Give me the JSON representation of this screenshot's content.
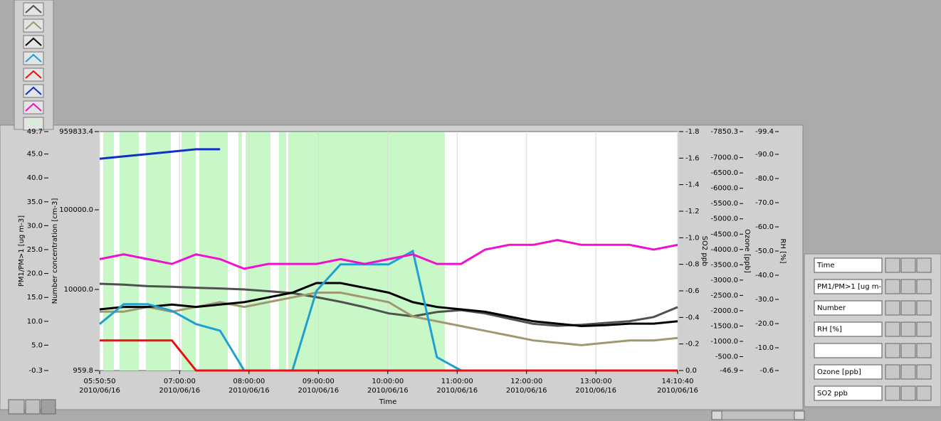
{
  "chart_data": {
    "type": "line",
    "x_label": "Time",
    "x": [
      21050,
      22300,
      23550,
      24800,
      26050,
      27300,
      28550,
      29800,
      31050,
      32300,
      33550,
      34800,
      36050,
      37300,
      38550,
      39800,
      41050,
      42300,
      43550,
      44800,
      46050,
      47300,
      48550,
      49800,
      51040
    ],
    "xlim": [
      21050,
      51040
    ],
    "xticks": [
      {
        "value": 21050,
        "label": "05:50:50"
      },
      {
        "value": 25200,
        "label": "07:00:00"
      },
      {
        "value": 28800,
        "label": "08:00:00"
      },
      {
        "value": 32400,
        "label": "09:00:00"
      },
      {
        "value": 36000,
        "label": "10:00:00"
      },
      {
        "value": 39600,
        "label": "11:00:00"
      },
      {
        "value": 43200,
        "label": "12:00:00"
      },
      {
        "value": 46800,
        "label": "13:00:00"
      },
      {
        "value": 51040,
        "label": "14:10:40"
      }
    ],
    "xtick_date": "2010/06/16",
    "y_axes": [
      {
        "label": "PM1/PM>1 [ug m-3]",
        "lim": [
          -0.3,
          49.7
        ],
        "log": false,
        "ticks": [
          -0.3,
          {
            "value": 5,
            "label": "5.0"
          },
          {
            "value": 10,
            "label": "10.0"
          },
          {
            "value": 15,
            "label": "15.0"
          },
          {
            "value": 20,
            "label": "20.0"
          },
          {
            "value": 25,
            "label": "25.0"
          },
          {
            "value": 30,
            "label": "30.0"
          },
          {
            "value": 35,
            "label": "35.0"
          },
          {
            "value": 40,
            "label": "40.0"
          },
          {
            "value": 45,
            "label": "45.0"
          },
          49.7
        ]
      },
      {
        "label": "Number concentration [cm-3]",
        "lim": [
          959.8,
          959833.4
        ],
        "log": true,
        "ticks": [
          959.8,
          {
            "value": 10000,
            "label": "10000.0"
          },
          {
            "value": 100000,
            "label": "100000.0"
          },
          959833.4
        ]
      },
      {
        "label": "SO2 ppb",
        "lim": [
          0,
          -1.8
        ],
        "log": false,
        "ticks": [
          {
            "value": 0,
            "label": "0.0"
          },
          -0.2,
          -0.4,
          -0.6,
          -0.8,
          {
            "value": -1,
            "label": "-1.0"
          },
          -1.2,
          -1.4,
          -1.6,
          -1.8
        ]
      },
      {
        "label": "Ozone [ppb]",
        "lim": [
          -46.9,
          -7850.3
        ],
        "log": false,
        "ticks": [
          -46.9,
          {
            "value": -500,
            "label": "-500.0"
          },
          {
            "value": -1000,
            "label": "-1000.0"
          },
          {
            "value": -1500,
            "label": "-1500.0"
          },
          {
            "value": -2000,
            "label": "-2000.0"
          },
          {
            "value": -2500,
            "label": "-2500.0"
          },
          {
            "value": -3000,
            "label": "-3000.0"
          },
          {
            "value": -3500,
            "label": "-3500.0"
          },
          {
            "value": -4000,
            "label": "-4000.0"
          },
          {
            "value": -4500,
            "label": "-4500.0"
          },
          {
            "value": -5000,
            "label": "-5000.0"
          },
          {
            "value": -5500,
            "label": "-5500.0"
          },
          {
            "value": -6000,
            "label": "-6000.0"
          },
          {
            "value": -6500,
            "label": "-6500.0"
          },
          {
            "value": -7000,
            "label": "-7000.0"
          },
          -7850.3
        ]
      },
      {
        "label": "RH [%]",
        "lim": [
          -0.6,
          -99.4
        ],
        "log": false,
        "ticks": [
          -0.6,
          {
            "value": -10,
            "label": "-10.0"
          },
          {
            "value": -20,
            "label": "-20.0"
          },
          {
            "value": -30,
            "label": "-30.0"
          },
          {
            "value": -40,
            "label": "-40.0"
          },
          {
            "value": -50,
            "label": "-50.0"
          },
          {
            "value": -60,
            "label": "-60.0"
          },
          {
            "value": -70,
            "label": "-70.0"
          },
          {
            "value": -80,
            "label": "-80.0"
          },
          {
            "value": -90,
            "label": "-90.0"
          },
          -99.4
        ]
      }
    ],
    "shade_color": "#c8f8c8",
    "shaded_spans": [
      [
        21235,
        21789
      ],
      [
        22084,
        23081
      ],
      [
        23450,
        24743
      ],
      [
        25297,
        26036
      ],
      [
        26221,
        27698
      ],
      [
        28252,
        28437
      ],
      [
        28622,
        29914
      ],
      [
        30357,
        30726
      ],
      [
        30837,
        38961
      ]
    ],
    "series": [
      {
        "color": "#505050",
        "axis": 1,
        "values": [
          11800,
          11500,
          11000,
          10800,
          10500,
          10300,
          10000,
          9500,
          9000,
          8000,
          7000,
          6000,
          5000,
          4600,
          5200,
          5500,
          5000,
          4300,
          3700,
          3500,
          3600,
          3800,
          4000,
          4500,
          6000
        ]
      },
      {
        "color": "#a09870",
        "axis": 0,
        "values": [
          12,
          12,
          13,
          12,
          13,
          14,
          13,
          14,
          15,
          16,
          16,
          15,
          14,
          11,
          10,
          9,
          8,
          7,
          6,
          5.5,
          5,
          5.5,
          6,
          6,
          6.5
        ]
      },
      {
        "color": "#000000",
        "axis": 0,
        "values": [
          12.5,
          13,
          13,
          13.5,
          13,
          13.5,
          14,
          15,
          16,
          18,
          18,
          17,
          16,
          14,
          13,
          12.5,
          12,
          11,
          10,
          9.5,
          9,
          9.2,
          9.5,
          9.5,
          10
        ]
      },
      {
        "color": "#20a0d0",
        "axis": 2,
        "values": [
          -0.35,
          -0.5,
          -0.5,
          -0.45,
          -0.35,
          -0.3,
          0,
          0,
          0,
          -0.6,
          -0.8,
          -0.8,
          -0.8,
          -0.9,
          -0.1,
          0,
          0,
          0,
          0,
          0,
          0,
          0,
          0,
          0,
          0
        ]
      },
      {
        "color": "#e81010",
        "axis": 0,
        "values": [
          6,
          6,
          6,
          6,
          -0.3,
          -0.3,
          -0.3,
          -0.3,
          -0.3,
          -0.3,
          -0.3,
          -0.3,
          -0.3,
          -0.3,
          -0.3,
          -0.3,
          -0.3,
          -0.3,
          -0.3,
          -0.3,
          -0.3,
          -0.3,
          -0.3,
          -0.3,
          -0.3
        ]
      },
      {
        "color": "#1030c8",
        "axis": 0,
        "values": [
          44,
          44.5,
          45,
          45.5,
          46,
          46,
          null,
          null,
          null,
          null,
          null,
          null,
          null,
          null,
          null,
          null,
          null,
          null,
          null,
          null,
          null,
          null,
          null,
          null,
          null
        ]
      },
      {
        "color": "#f010d0",
        "axis": 0,
        "values": [
          23,
          24,
          23,
          22,
          24,
          23,
          21,
          22,
          22,
          22,
          23,
          22,
          23,
          24,
          22,
          22,
          25,
          26,
          26,
          27,
          26,
          26,
          26,
          25,
          26
        ]
      }
    ]
  },
  "scale_legend": {
    "rows": [
      "Time",
      "PM1/PM>1 [ug m-",
      "Number",
      "RH [%]",
      "Ozone [ppb]",
      "SO2 ppb"
    ]
  }
}
